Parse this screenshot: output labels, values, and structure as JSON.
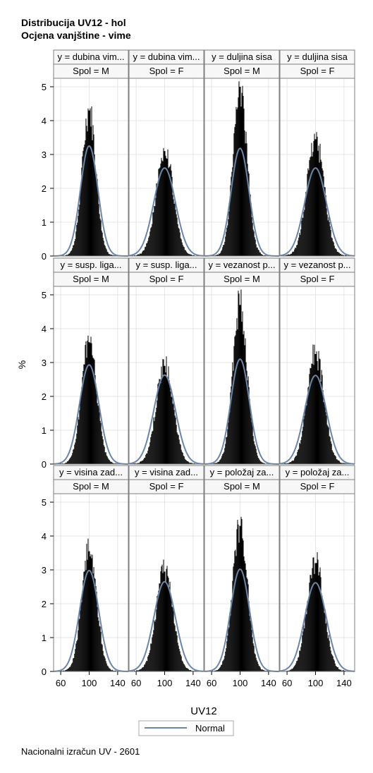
{
  "title_lines": [
    "Distribucija UV12 - hol",
    "Ocjena vanjštine - vime"
  ],
  "footnote": "Nacionalni izračun UV - 2601",
  "colors": {
    "bars": "#000000",
    "curve": "#6a85a8",
    "header_bg": "#f7f7f7",
    "frame": "#7f7f7f",
    "grid": "#e6e6e6"
  },
  "chart_data": {
    "type": "histogram-panel",
    "xlabel": "UV12",
    "ylabel": "%",
    "xlim": [
      50,
      155
    ],
    "ylim": [
      0,
      5.25
    ],
    "xticks": [
      60,
      100,
      140
    ],
    "yticks": [
      0,
      1,
      2,
      3,
      4,
      5
    ],
    "legend": {
      "placement": "bottom-center",
      "entries": [
        "Normal"
      ]
    },
    "columns": [
      "Spol = M",
      "Spol = F",
      "Spol = M",
      "Spol = F"
    ],
    "panels": [
      {
        "row": 0,
        "col": 0,
        "y_label": "y = dubina vim...",
        "spol": "Spol = M",
        "peak": 4.3,
        "normal_peak": 3.25,
        "mean": 100,
        "sd": 12.3
      },
      {
        "row": 0,
        "col": 1,
        "y_label": "y = dubina vim...",
        "spol": "Spol = F",
        "peak": 3.1,
        "normal_peak": 2.6,
        "mean": 100,
        "sd": 15.3
      },
      {
        "row": 0,
        "col": 2,
        "y_label": "y = duljina sisa",
        "spol": "Spol = M",
        "peak": 5.0,
        "normal_peak": 3.18,
        "mean": 100,
        "sd": 12.5
      },
      {
        "row": 0,
        "col": 3,
        "y_label": "y = duljina sisa",
        "spol": "Spol = F",
        "peak": 3.45,
        "normal_peak": 2.6,
        "mean": 100,
        "sd": 15.3
      },
      {
        "row": 1,
        "col": 0,
        "y_label": "y = susp. liga...",
        "spol": "Spol = M",
        "peak": 3.6,
        "normal_peak": 2.93,
        "mean": 100,
        "sd": 13.6
      },
      {
        "row": 1,
        "col": 1,
        "y_label": "y = susp. liga...",
        "spol": "Spol = F",
        "peak": 2.9,
        "normal_peak": 2.63,
        "mean": 100,
        "sd": 15.2
      },
      {
        "row": 1,
        "col": 2,
        "y_label": "y = vezanost p...",
        "spol": "Spol = M",
        "peak": 4.7,
        "normal_peak": 3.1,
        "mean": 100,
        "sd": 12.9
      },
      {
        "row": 1,
        "col": 3,
        "y_label": "y = vezanost p...",
        "spol": "Spol = F",
        "peak": 3.25,
        "normal_peak": 2.62,
        "mean": 100,
        "sd": 15.2
      },
      {
        "row": 2,
        "col": 0,
        "y_label": "y = visina zad...",
        "spol": "Spol = M",
        "peak": 3.55,
        "normal_peak": 2.98,
        "mean": 100,
        "sd": 13.4
      },
      {
        "row": 2,
        "col": 1,
        "y_label": "y = visina zad...",
        "spol": "Spol = F",
        "peak": 2.95,
        "normal_peak": 2.65,
        "mean": 100,
        "sd": 15.1
      },
      {
        "row": 2,
        "col": 2,
        "y_label": "y = položaj za...",
        "spol": "Spol = M",
        "peak": 4.3,
        "normal_peak": 3.02,
        "mean": 100,
        "sd": 13.2
      },
      {
        "row": 2,
        "col": 3,
        "y_label": "y = položaj za...",
        "spol": "Spol = F",
        "peak": 3.2,
        "normal_peak": 2.62,
        "mean": 100,
        "sd": 15.2
      }
    ]
  }
}
